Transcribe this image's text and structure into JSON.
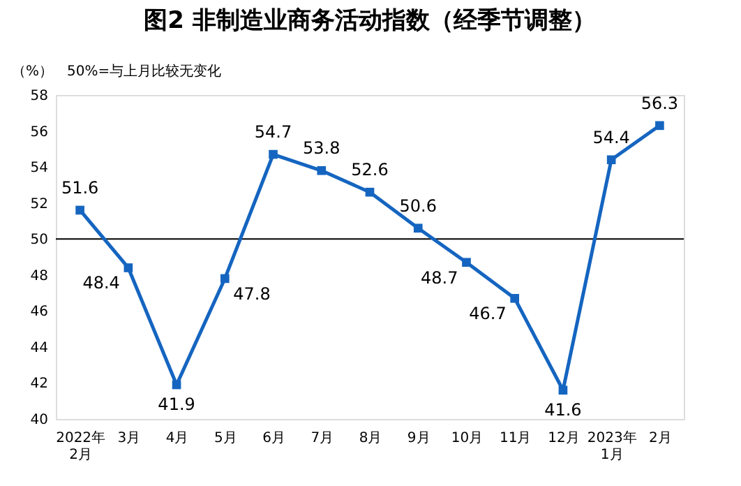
{
  "chart_data": {
    "type": "line",
    "title": "图2  非制造业商务活动指数（经季节调整）",
    "ylabel": "（%）",
    "annotations": [
      "50%=与上月比较无变化"
    ],
    "categories": [
      "2022年\n2月",
      "3月",
      "4月",
      "5月",
      "6月",
      "7月",
      "8月",
      "9月",
      "10月",
      "11月",
      "12月",
      "2023年\n1月",
      "2月"
    ],
    "series": [
      {
        "color": "#1565c0",
        "values": [
          51.6,
          48.4,
          41.9,
          47.8,
          54.7,
          53.8,
          52.6,
          50.6,
          48.7,
          46.7,
          41.6,
          54.4,
          56.3
        ]
      }
    ],
    "ylim": [
      40,
      58
    ],
    "yticks": [
      40,
      42,
      44,
      46,
      48,
      50,
      52,
      54,
      56,
      58
    ],
    "ref_lines": [
      {
        "axis": "y",
        "value": 50,
        "color": "#000000"
      }
    ],
    "grid": false,
    "marker": "square",
    "line_style": "solid",
    "data_labels": true
  }
}
